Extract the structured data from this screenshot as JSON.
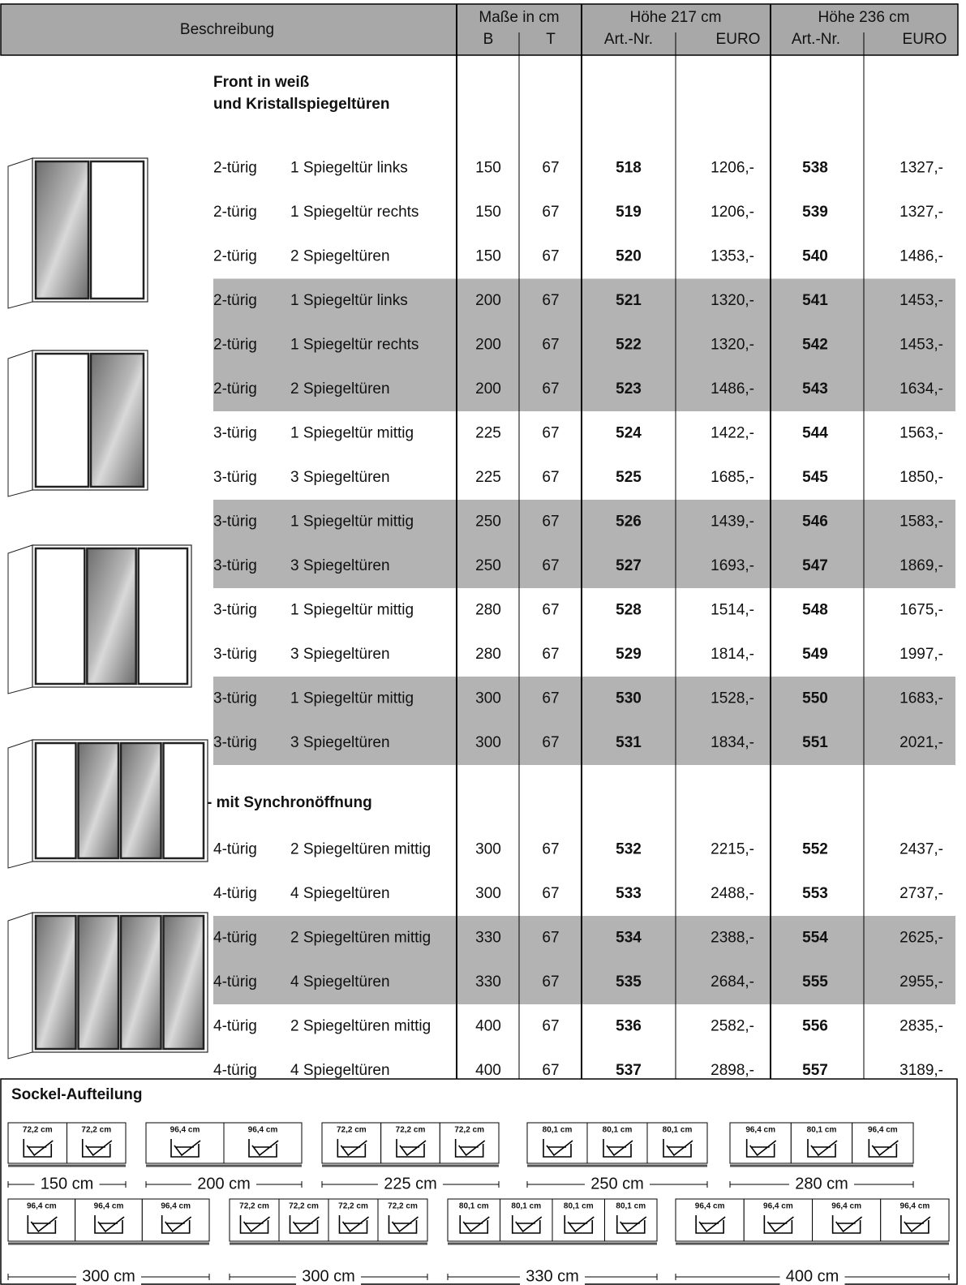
{
  "header": {
    "description": "Beschreibung",
    "dims": "Maße in cm",
    "b": "B",
    "t": "T",
    "height1": "Höhe 217 cm",
    "height2": "Höhe 236 cm",
    "art": "Art.-Nr.",
    "euro": "EURO"
  },
  "sections": [
    {
      "title": [
        "Front in weiß",
        "und Kristallspiegeltüren"
      ],
      "rows": [
        {
          "doors": "2-türig",
          "desc": "1 Spiegeltür links",
          "b": 150,
          "t": 67,
          "art217": 518,
          "euro217": "1206,-",
          "art236": 538,
          "euro236": "1327,-",
          "shaded": false
        },
        {
          "doors": "2-türig",
          "desc": "1 Spiegeltür rechts",
          "b": 150,
          "t": 67,
          "art217": 519,
          "euro217": "1206,-",
          "art236": 539,
          "euro236": "1327,-",
          "shaded": false
        },
        {
          "doors": "2-türig",
          "desc": "2 Spiegeltüren",
          "b": 150,
          "t": 67,
          "art217": 520,
          "euro217": "1353,-",
          "art236": 540,
          "euro236": "1486,-",
          "shaded": false
        },
        {
          "doors": "2-türig",
          "desc": "1 Spiegeltür links",
          "b": 200,
          "t": 67,
          "art217": 521,
          "euro217": "1320,-",
          "art236": 541,
          "euro236": "1453,-",
          "shaded": true
        },
        {
          "doors": "2-türig",
          "desc": "1 Spiegeltür rechts",
          "b": 200,
          "t": 67,
          "art217": 522,
          "euro217": "1320,-",
          "art236": 542,
          "euro236": "1453,-",
          "shaded": true
        },
        {
          "doors": "2-türig",
          "desc": "2 Spiegeltüren",
          "b": 200,
          "t": 67,
          "art217": 523,
          "euro217": "1486,-",
          "art236": 543,
          "euro236": "1634,-",
          "shaded": true
        },
        {
          "doors": "3-türig",
          "desc": "1 Spiegeltür mittig",
          "b": 225,
          "t": 67,
          "art217": 524,
          "euro217": "1422,-",
          "art236": 544,
          "euro236": "1563,-",
          "shaded": false
        },
        {
          "doors": "3-türig",
          "desc": "3 Spiegeltüren",
          "b": 225,
          "t": 67,
          "art217": 525,
          "euro217": "1685,-",
          "art236": 545,
          "euro236": "1850,-",
          "shaded": false
        },
        {
          "doors": "3-türig",
          "desc": "1 Spiegeltür mittig",
          "b": 250,
          "t": 67,
          "art217": 526,
          "euro217": "1439,-",
          "art236": 546,
          "euro236": "1583,-",
          "shaded": true
        },
        {
          "doors": "3-türig",
          "desc": "3 Spiegeltüren",
          "b": 250,
          "t": 67,
          "art217": 527,
          "euro217": "1693,-",
          "art236": 547,
          "euro236": "1869,-",
          "shaded": true
        },
        {
          "doors": "3-türig",
          "desc": "1 Spiegeltür mittig",
          "b": 280,
          "t": 67,
          "art217": 528,
          "euro217": "1514,-",
          "art236": 548,
          "euro236": "1675,-",
          "shaded": false
        },
        {
          "doors": "3-türig",
          "desc": "3 Spiegeltüren",
          "b": 280,
          "t": 67,
          "art217": 529,
          "euro217": "1814,-",
          "art236": 549,
          "euro236": "1997,-",
          "shaded": false
        },
        {
          "doors": "3-türig",
          "desc": "1 Spiegeltür mittig",
          "b": 300,
          "t": 67,
          "art217": 530,
          "euro217": "1528,-",
          "art236": 550,
          "euro236": "1683,-",
          "shaded": true
        },
        {
          "doors": "3-türig",
          "desc": "3 Spiegeltüren",
          "b": 300,
          "t": 67,
          "art217": 531,
          "euro217": "1834,-",
          "art236": 551,
          "euro236": "2021,-",
          "shaded": true
        }
      ]
    },
    {
      "title": [
        "- mit Synchronöffnung"
      ],
      "rows": [
        {
          "doors": "4-türig",
          "desc": "2 Spiegeltüren mittig",
          "b": 300,
          "t": 67,
          "art217": 532,
          "euro217": "2215,-",
          "art236": 552,
          "euro236": "2437,-",
          "shaded": false
        },
        {
          "doors": "4-türig",
          "desc": "4 Spiegeltüren",
          "b": 300,
          "t": 67,
          "art217": 533,
          "euro217": "2488,-",
          "art236": 553,
          "euro236": "2737,-",
          "shaded": false
        },
        {
          "doors": "4-türig",
          "desc": "2 Spiegeltüren mittig",
          "b": 330,
          "t": 67,
          "art217": 534,
          "euro217": "2388,-",
          "art236": 554,
          "euro236": "2625,-",
          "shaded": true
        },
        {
          "doors": "4-türig",
          "desc": "4 Spiegeltüren",
          "b": 330,
          "t": 67,
          "art217": 535,
          "euro217": "2684,-",
          "art236": 555,
          "euro236": "2955,-",
          "shaded": true
        },
        {
          "doors": "4-türig",
          "desc": "2 Spiegeltüren mittig",
          "b": 400,
          "t": 67,
          "art217": 536,
          "euro217": "2582,-",
          "art236": 556,
          "euro236": "2835,-",
          "shaded": false
        },
        {
          "doors": "4-türig",
          "desc": "4 Spiegeltüren",
          "b": 400,
          "t": 67,
          "art217": 537,
          "euro217": "2898,-",
          "art236": 557,
          "euro236": "3189,-",
          "shaded": false
        }
      ]
    }
  ],
  "sockel": {
    "title": "Sockel-Aufteilung",
    "rows": [
      [
        {
          "segments": [
            "72,2 cm",
            "72,2 cm"
          ],
          "total": "150 cm"
        },
        {
          "segments": [
            "96,4 cm",
            "96,4 cm"
          ],
          "total": "200 cm"
        },
        {
          "segments": [
            "72,2 cm",
            "72,2 cm",
            "72,2 cm"
          ],
          "total": "225 cm"
        },
        {
          "segments": [
            "80,1 cm",
            "80,1 cm",
            "80,1 cm"
          ],
          "total": "250 cm"
        },
        {
          "segments": [
            "96,4 cm",
            "80,1 cm",
            "96,4 cm"
          ],
          "total": "280 cm"
        }
      ],
      [
        {
          "segments": [
            "96,4 cm",
            "96,4 cm",
            "96,4 cm"
          ],
          "total": "300 cm"
        },
        {
          "segments": [
            "72,2 cm",
            "72,2 cm",
            "72,2 cm",
            "72,2 cm"
          ],
          "total": "300 cm"
        },
        {
          "segments": [
            "80,1 cm",
            "80,1 cm",
            "80,1 cm",
            "80,1 cm"
          ],
          "total": "330 cm"
        },
        {
          "segments": [
            "96,4 cm",
            "96,4 cm",
            "96,4 cm",
            "96,4 cm"
          ],
          "total": "400 cm"
        }
      ]
    ]
  }
}
